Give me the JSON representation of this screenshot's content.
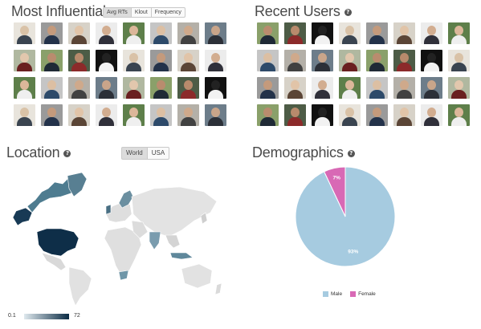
{
  "influential": {
    "title": "Most Influential",
    "tabs": [
      "Avg RTs",
      "Klout",
      "Frequency"
    ],
    "active_tab": 0
  },
  "recent": {
    "title": "Recent Users"
  },
  "location": {
    "title": "Location",
    "tabs": [
      "World",
      "USA"
    ],
    "active_tab": 0,
    "legend_min": "0.1",
    "legend_max": "72"
  },
  "demographics": {
    "title": "Demographics",
    "male_label": "Male",
    "female_label": "Female",
    "male_pct_label": "93%",
    "female_pct_label": "7%",
    "male_color": "#a6cbe0",
    "female_color": "#d869b5"
  },
  "chart_data": {
    "type": "pie",
    "categories": [
      "Male",
      "Female"
    ],
    "values": [
      93,
      7
    ],
    "legend": "bottom"
  },
  "help_icon_glyph": "?"
}
